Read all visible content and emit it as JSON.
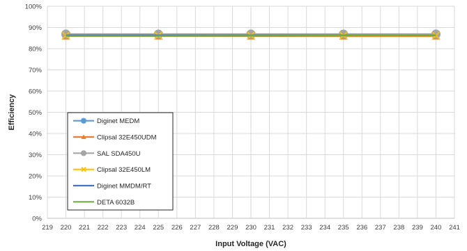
{
  "chart_data": {
    "type": "line",
    "title": "",
    "xlabel": "Input Voltage (VAC)",
    "ylabel": "Efficiency",
    "xlim": [
      219,
      241
    ],
    "ylim": [
      0,
      100
    ],
    "x_ticks": [
      "219",
      "220",
      "221",
      "222",
      "223",
      "224",
      "225",
      "226",
      "227",
      "228",
      "229",
      "230",
      "231",
      "232",
      "233",
      "234",
      "235",
      "236",
      "237",
      "238",
      "239",
      "240",
      "241"
    ],
    "y_ticks": [
      "0%",
      "10%",
      "20%",
      "30%",
      "40%",
      "50%",
      "60%",
      "70%",
      "80%",
      "90%",
      "100%"
    ],
    "grid": true,
    "legend_position": "bottom-left",
    "series": [
      {
        "name": "Diginet MEDM",
        "color": "#5B9BD5",
        "marker": "circle",
        "x": [
          220,
          225,
          230,
          235,
          240
        ],
        "y": [
          86.8,
          86.8,
          86.8,
          86.8,
          86.8
        ]
      },
      {
        "name": "Clipsal 32E450UDM",
        "color": "#ED7D31",
        "marker": "triangle",
        "x": [
          220,
          225,
          230,
          235,
          240
        ],
        "y": [
          85.9,
          85.9,
          85.9,
          85.9,
          85.9
        ]
      },
      {
        "name": "SAL SDA450U",
        "color": "#A5A5A5",
        "marker": "circle",
        "x": [
          220,
          225,
          230,
          235,
          240
        ],
        "y": [
          86.9,
          86.9,
          86.9,
          86.9,
          86.9
        ]
      },
      {
        "name": "Clipsal 32E450LM",
        "color": "#FFC000",
        "marker": "x",
        "x": [
          220,
          225,
          230,
          235,
          240
        ],
        "y": [
          86.2,
          86.2,
          86.2,
          86.2,
          86.2
        ]
      },
      {
        "name": "Diginet MMDM/RT",
        "color": "#4472C4",
        "marker": "none",
        "x": [
          220,
          225,
          230,
          235,
          240
        ],
        "y": [
          86.3,
          86.3,
          86.3,
          86.3,
          86.3
        ]
      },
      {
        "name": "DETA 6032B",
        "color": "#70AD47",
        "marker": "none",
        "x": [
          220,
          225,
          230,
          235,
          240
        ],
        "y": [
          86.0,
          86.0,
          86.1,
          86.2,
          86.4
        ]
      }
    ]
  }
}
